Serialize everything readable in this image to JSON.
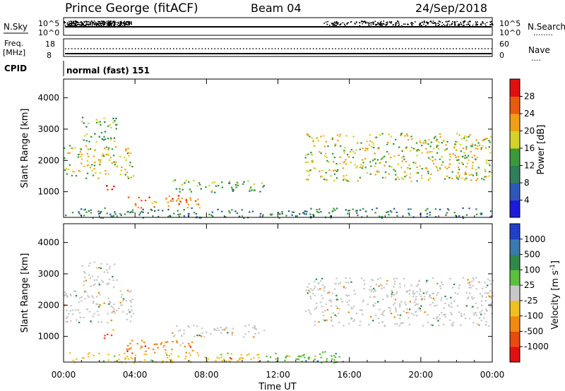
{
  "header": {
    "station": "Prince George (fitACF)",
    "beam": "Beam 04",
    "date": "24/Sep/2018"
  },
  "status_panels": {
    "nsky_label": "N.Sky",
    "nsearch_label": "N.Search",
    "freq_label_line1": "Freq.",
    "freq_label_line2": "[MHz]",
    "nave_label": "Nave",
    "cpid_label": "CPID",
    "cpid_value": "normal (fast) 151",
    "nsky_ticks": [
      "10^5",
      "10^0"
    ],
    "nsearch_ticks": [
      "10^5",
      "10^0"
    ],
    "freq_ticks": [
      "18",
      "8"
    ],
    "nave_ticks": [
      "60",
      "0"
    ],
    "dotted_marker": "........",
    "dotted_marker_short": "...."
  },
  "chart_data": [
    {
      "type": "heatmap",
      "name": "power",
      "ylabel": "Slant Range [km]",
      "xlabel": "Time UT",
      "x_ticks": [
        "00:00",
        "04:00",
        "08:00",
        "12:00",
        "16:00",
        "20:00",
        "00:00"
      ],
      "x_range_hours": [
        0,
        24
      ],
      "y_ticks": [
        1000,
        2000,
        3000,
        4000
      ],
      "y_range_km": [
        180,
        4600
      ],
      "colorbar": {
        "label": "Power [dB]",
        "ticks": [
          4,
          8,
          12,
          16,
          20,
          24,
          28
        ],
        "colors": [
          "#1b1bd9",
          "#2e58b8",
          "#2f7f5a",
          "#3a9a3a",
          "#d4d22a",
          "#f0a018",
          "#e85a10",
          "#e01010"
        ]
      },
      "regions": [
        {
          "t0": 0.0,
          "t1": 3.9,
          "r0": 1450,
          "r1": 2500,
          "level": 18
        },
        {
          "t0": 1.0,
          "t1": 3.0,
          "r0": 2600,
          "r1": 3400,
          "level": 14
        },
        {
          "t0": 2.2,
          "t1": 2.9,
          "r0": 950,
          "r1": 1250,
          "level": 28
        },
        {
          "t0": 3.5,
          "t1": 7.6,
          "r0": 500,
          "r1": 900,
          "level": 24
        },
        {
          "t0": 6.0,
          "t1": 11.2,
          "r0": 1000,
          "r1": 1400,
          "level": 14
        },
        {
          "t0": 13.5,
          "t1": 24.0,
          "r0": 1350,
          "r1": 2900,
          "level": 18
        },
        {
          "t0": 0.0,
          "t1": 24.0,
          "r0": 180,
          "r1": 500,
          "level": 10
        }
      ]
    },
    {
      "type": "heatmap",
      "name": "velocity",
      "ylabel": "Slant Range [km]",
      "xlabel": "Time UT",
      "x_ticks": [
        "00:00",
        "04:00",
        "08:00",
        "12:00",
        "16:00",
        "20:00",
        "00:00"
      ],
      "x_range_hours": [
        0,
        24
      ],
      "y_ticks": [
        1000,
        2000,
        3000,
        4000
      ],
      "y_range_km": [
        180,
        4600
      ],
      "colorbar": {
        "label": "Velocity [m s^-1]",
        "ticks": [
          "1000",
          "500",
          "100",
          "25",
          "-25",
          "-100",
          "-500",
          "-1000"
        ],
        "colors": [
          "#2040c8",
          "#3a7ab0",
          "#2f8a4a",
          "#5ac040",
          "#c8c8c8",
          "#f0c020",
          "#f08a10",
          "#e84a10",
          "#e01010"
        ]
      },
      "regions": [
        {
          "t0": 0.0,
          "t1": 3.9,
          "r0": 1450,
          "r1": 2500,
          "value": 0
        },
        {
          "t0": 1.0,
          "t1": 3.0,
          "r0": 2600,
          "r1": 3400,
          "value": 0
        },
        {
          "t0": 2.2,
          "t1": 2.9,
          "r0": 950,
          "r1": 1250,
          "value": -500
        },
        {
          "t0": 3.5,
          "t1": 7.6,
          "r0": 500,
          "r1": 900,
          "value": -300
        },
        {
          "t0": 6.0,
          "t1": 11.2,
          "r0": 1000,
          "r1": 1400,
          "value": 0
        },
        {
          "t0": 13.5,
          "t1": 24.0,
          "r0": 1350,
          "r1": 2900,
          "value": 0
        },
        {
          "t0": 11.0,
          "t1": 16.0,
          "r0": 180,
          "r1": 550,
          "value": 200
        },
        {
          "t0": 0.0,
          "t1": 11.0,
          "r0": 180,
          "r1": 500,
          "value": -100
        }
      ]
    }
  ]
}
